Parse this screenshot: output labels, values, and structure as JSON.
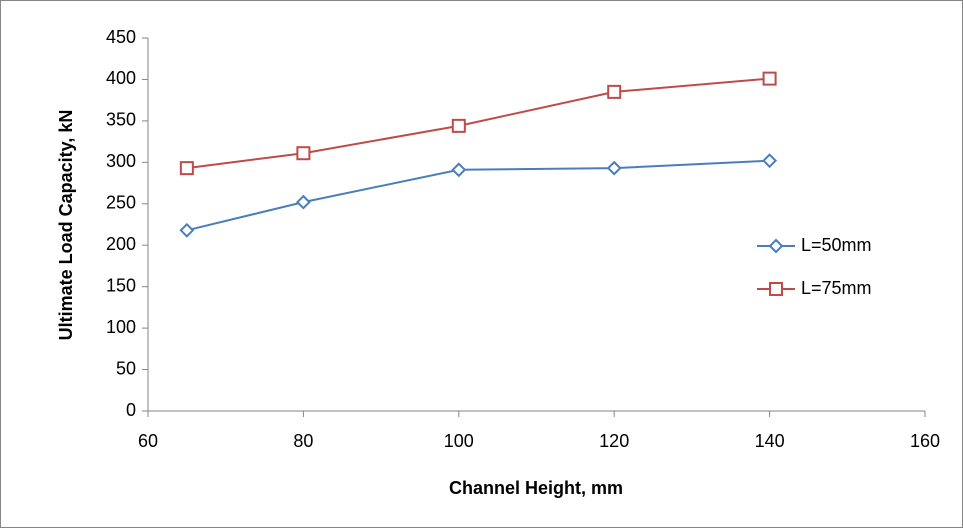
{
  "chart_data": {
    "type": "line",
    "title": "",
    "xlabel": "Channel Height, mm",
    "ylabel": "Ultimate Load Capacity, kN",
    "xlim": [
      60,
      160
    ],
    "ylim": [
      0,
      450
    ],
    "xticks": [
      60,
      80,
      100,
      120,
      140,
      160
    ],
    "yticks": [
      0,
      50,
      100,
      150,
      200,
      250,
      300,
      350,
      400,
      450
    ],
    "grid": false,
    "legend_position": "right",
    "x": [
      65,
      80,
      100,
      120,
      140
    ],
    "series": [
      {
        "name": "L=50mm",
        "marker": "diamond",
        "color": "#4a7ebb",
        "values": [
          218,
          252,
          291,
          293,
          302
        ]
      },
      {
        "name": "L=75mm",
        "marker": "square",
        "color": "#be4b48",
        "values": [
          293,
          311,
          344,
          385,
          401
        ]
      }
    ]
  },
  "colors": {
    "axis": "#868686",
    "frame": "#868686"
  }
}
